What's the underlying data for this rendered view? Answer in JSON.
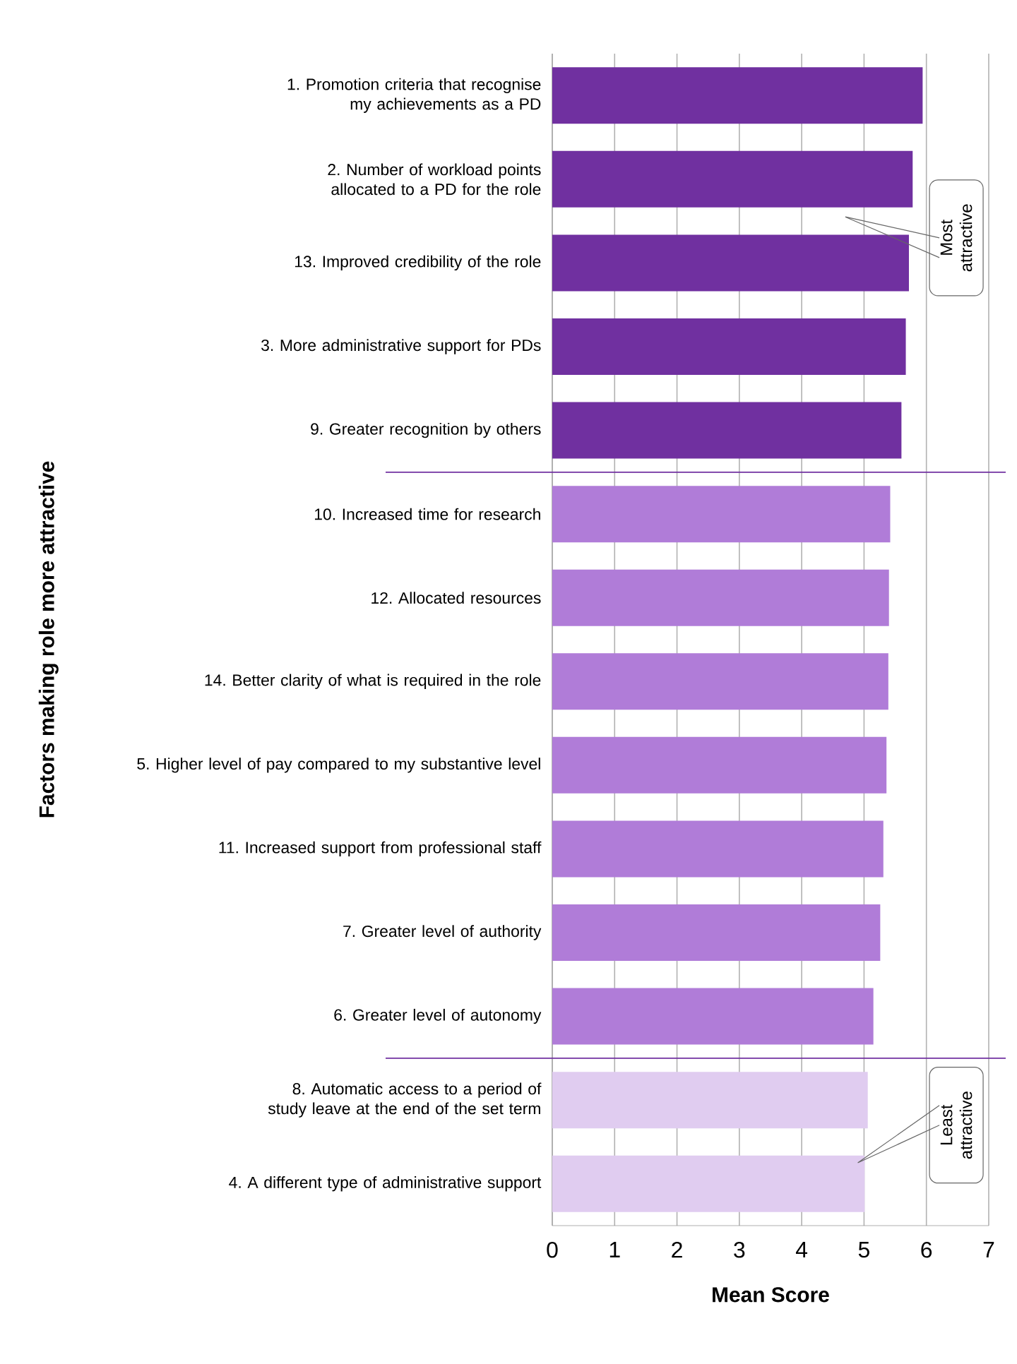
{
  "chart_data": {
    "type": "bar",
    "orientation": "horizontal",
    "ylabel": "Factors making role more attractive",
    "xlabel": "Mean Score",
    "categories": [
      "1. Promotion criteria that recognise my achievements as a PD",
      "2. Number of workload points allocated to a PD for the role",
      "13. Improved credibility of the role",
      "3. More administrative support for PDs",
      "9. Greater recognition by others",
      "10. Increased time for research",
      "12. Allocated resources",
      "14. Better clarity of what is required in the role",
      "5. Higher level of pay compared to my substantive level",
      "11. Increased support from professional staff",
      "7. Greater level of authority",
      "6. Greater level of autonomy",
      "8. Automatic access to a period of study leave at the end of the set term",
      "4. A different type of administrative support"
    ],
    "values": [
      5.94,
      5.78,
      5.72,
      5.67,
      5.6,
      5.42,
      5.4,
      5.39,
      5.36,
      5.31,
      5.26,
      5.15,
      5.06,
      5.01
    ],
    "colors": [
      "#7030a0",
      "#7030a0",
      "#7030a0",
      "#7030a0",
      "#7030a0",
      "#b07cd8",
      "#b07cd8",
      "#b07cd8",
      "#b07cd8",
      "#b07cd8",
      "#b07cd8",
      "#b07cd8",
      "#e0ccf0",
      "#e0ccf0"
    ],
    "xlim": [
      0,
      7
    ],
    "xticks": [
      0,
      1,
      2,
      3,
      4,
      5,
      6,
      7
    ],
    "grid": "x",
    "annotations": [
      "Most attractive",
      "Least attractive"
    ]
  }
}
